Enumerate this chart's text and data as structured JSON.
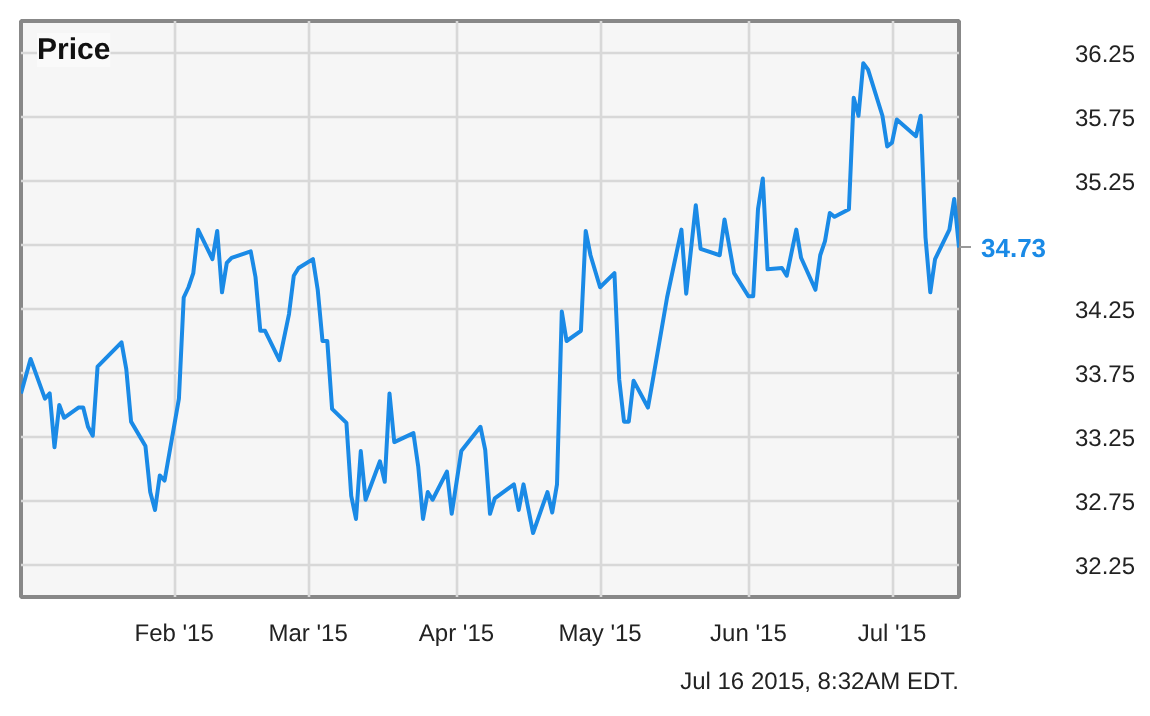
{
  "chart_data": {
    "type": "line",
    "title": "Price",
    "x": [
      "2014-12-31",
      "2015-01-02",
      "2015-01-05",
      "2015-01-06",
      "2015-01-07",
      "2015-01-08",
      "2015-01-09",
      "2015-01-12",
      "2015-01-13",
      "2015-01-14",
      "2015-01-15",
      "2015-01-16",
      "2015-01-21",
      "2015-01-22",
      "2015-01-23",
      "2015-01-26",
      "2015-01-27",
      "2015-01-28",
      "2015-01-29",
      "2015-01-30",
      "2015-02-02",
      "2015-02-03",
      "2015-02-04",
      "2015-02-05",
      "2015-02-06",
      "2015-02-09",
      "2015-02-10",
      "2015-02-11",
      "2015-02-12",
      "2015-02-13",
      "2015-02-17",
      "2015-02-18",
      "2015-02-19",
      "2015-02-20",
      "2015-02-23",
      "2015-02-25",
      "2015-02-26",
      "2015-02-27",
      "2015-03-02",
      "2015-03-03",
      "2015-03-04",
      "2015-03-05",
      "2015-03-06",
      "2015-03-09",
      "2015-03-10",
      "2015-03-11",
      "2015-03-12",
      "2015-03-13",
      "2015-03-16",
      "2015-03-17",
      "2015-03-18",
      "2015-03-19",
      "2015-03-23",
      "2015-03-24",
      "2015-03-25",
      "2015-03-26",
      "2015-03-27",
      "2015-03-30",
      "2015-03-31",
      "2015-04-02",
      "2015-04-06",
      "2015-04-07",
      "2015-04-08",
      "2015-04-09",
      "2015-04-13",
      "2015-04-14",
      "2015-04-15",
      "2015-04-17",
      "2015-04-20",
      "2015-04-21",
      "2015-04-22",
      "2015-04-23",
      "2015-04-24",
      "2015-04-27",
      "2015-04-28",
      "2015-04-29",
      "2015-05-01",
      "2015-05-04",
      "2015-05-05",
      "2015-05-06",
      "2015-05-07",
      "2015-05-08",
      "2015-05-11",
      "2015-05-12",
      "2015-05-15",
      "2015-05-18",
      "2015-05-19",
      "2015-05-21",
      "2015-05-22",
      "2015-05-26",
      "2015-05-27",
      "2015-05-29",
      "2015-06-01",
      "2015-06-02",
      "2015-06-03",
      "2015-06-04",
      "2015-06-05",
      "2015-06-08",
      "2015-06-09",
      "2015-06-11",
      "2015-06-12",
      "2015-06-15",
      "2015-06-16",
      "2015-06-17",
      "2015-06-18",
      "2015-06-19",
      "2015-06-22",
      "2015-06-23",
      "2015-06-24",
      "2015-06-25",
      "2015-06-26",
      "2015-06-29",
      "2015-06-30",
      "2015-07-01",
      "2015-07-02",
      "2015-07-06",
      "2015-07-07",
      "2015-07-08",
      "2015-07-09",
      "2015-07-10",
      "2015-07-13",
      "2015-07-14",
      "2015-07-15"
    ],
    "series": [
      {
        "color": "#1a8ae6",
        "values": [
          33.59,
          33.86,
          33.55,
          33.59,
          33.17,
          33.5,
          33.4,
          33.48,
          33.48,
          33.33,
          33.26,
          33.8,
          33.99,
          33.78,
          33.37,
          33.18,
          32.82,
          32.68,
          32.95,
          32.91,
          33.55,
          34.34,
          34.42,
          34.53,
          34.87,
          34.64,
          34.86,
          34.38,
          34.61,
          34.65,
          34.7,
          34.5,
          34.08,
          34.08,
          33.85,
          34.21,
          34.51,
          34.57,
          34.64,
          34.4,
          34.0,
          34.0,
          33.47,
          33.36,
          32.79,
          32.61,
          33.14,
          32.76,
          33.06,
          32.9,
          33.59,
          33.21,
          33.28,
          33.02,
          32.61,
          32.82,
          32.76,
          32.98,
          32.65,
          33.14,
          33.33,
          33.15,
          32.65,
          32.77,
          32.88,
          32.68,
          32.88,
          32.5,
          32.82,
          32.66,
          32.88,
          34.23,
          34.0,
          34.08,
          34.86,
          34.67,
          34.42,
          34.53,
          33.7,
          33.37,
          33.37,
          33.69,
          33.48,
          33.69,
          34.34,
          34.87,
          34.37,
          35.06,
          34.72,
          34.67,
          34.95,
          34.53,
          34.35,
          34.35,
          35.03,
          35.27,
          34.56,
          34.57,
          34.51,
          34.87,
          34.65,
          34.4,
          34.67,
          34.78,
          35.0,
          34.97,
          35.03,
          35.9,
          35.76,
          36.17,
          36.12,
          35.76,
          35.52,
          35.55,
          35.73,
          35.6,
          35.76,
          34.81,
          34.38,
          34.64,
          34.87,
          35.11,
          34.73
        ]
      }
    ],
    "xlim": [
      "2014-12-31",
      "2015-07-15"
    ],
    "xticks": [
      {
        "value": "2015-02-01",
        "label": "Feb '15"
      },
      {
        "value": "2015-03-01",
        "label": "Mar '15"
      },
      {
        "value": "2015-04-01",
        "label": "Apr '15"
      },
      {
        "value": "2015-05-01",
        "label": "May '15"
      },
      {
        "value": "2015-06-01",
        "label": "Jun '15"
      },
      {
        "value": "2015-07-01",
        "label": "Jul '15"
      }
    ],
    "ylim": [
      32.0,
      36.5
    ],
    "yticks": [
      {
        "value": 32.25,
        "label": "32.25"
      },
      {
        "value": 32.75,
        "label": "32.75"
      },
      {
        "value": 33.25,
        "label": "33.25"
      },
      {
        "value": 33.75,
        "label": "33.75"
      },
      {
        "value": 34.25,
        "label": "34.25"
      },
      {
        "value": 34.75,
        "label": null
      },
      {
        "value": 35.25,
        "label": "35.25"
      },
      {
        "value": 35.75,
        "label": "35.75"
      },
      {
        "value": 36.25,
        "label": "36.25"
      }
    ],
    "grid": true,
    "marker": "none",
    "line_style": "solid",
    "annotations": [
      "34.73",
      "Jul 16 2015, 8:32AM EDT."
    ]
  }
}
